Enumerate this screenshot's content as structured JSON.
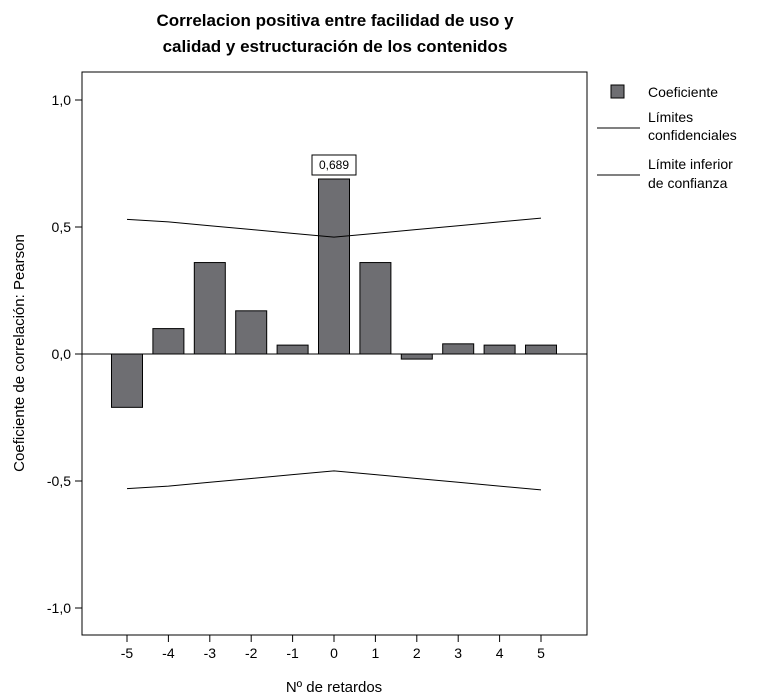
{
  "chart_data": {
    "type": "bar",
    "title": [
      "Correlacion positiva entre facilidad de uso y",
      "calidad y estructuración de los contenidos"
    ],
    "xlabel": "Nº de retardos",
    "ylabel": "Coeficiente de correlación: Pearson",
    "x_ticks": [
      "-5",
      "-4",
      "-3",
      "-2",
      "-1",
      "0",
      "1",
      "2",
      "3",
      "4",
      "5"
    ],
    "y_ticks": [
      "1,0",
      "0,5",
      "0,0",
      "-0,5",
      "-1,0"
    ],
    "y_tick_values": [
      1.0,
      0.5,
      0.0,
      -0.5,
      -1.0
    ],
    "ylim": [
      -1.1,
      1.12
    ],
    "grid": false,
    "legend_position": "right",
    "categories": [
      -5,
      -4,
      -3,
      -2,
      -1,
      0,
      1,
      2,
      3,
      4,
      5
    ],
    "series": [
      {
        "name": "Coeficiente",
        "kind": "bar",
        "color": "#6e6e72",
        "values": [
          -0.21,
          0.1,
          0.36,
          0.17,
          0.035,
          0.689,
          0.36,
          -0.02,
          0.04,
          0.035,
          0.035
        ]
      },
      {
        "name": "Límites confidenciales",
        "kind": "line",
        "color": "#000000",
        "values": [
          0.53,
          0.52,
          0.505,
          0.49,
          0.475,
          0.46,
          0.475,
          0.49,
          0.505,
          0.52,
          0.535
        ]
      },
      {
        "name": "Límite inferior de confianza",
        "kind": "line",
        "color": "#000000",
        "values": [
          -0.53,
          -0.52,
          -0.505,
          -0.49,
          -0.475,
          -0.46,
          -0.475,
          -0.49,
          -0.505,
          -0.52,
          -0.535
        ]
      }
    ],
    "legend": {
      "bar_label": "Coeficiente",
      "upper_line_label": [
        "Límites",
        "confidenciales"
      ],
      "lower_line_label": [
        "Límite inferior",
        "de confianza"
      ]
    },
    "annotations": [
      {
        "category": 0,
        "text": "0,689"
      }
    ]
  }
}
